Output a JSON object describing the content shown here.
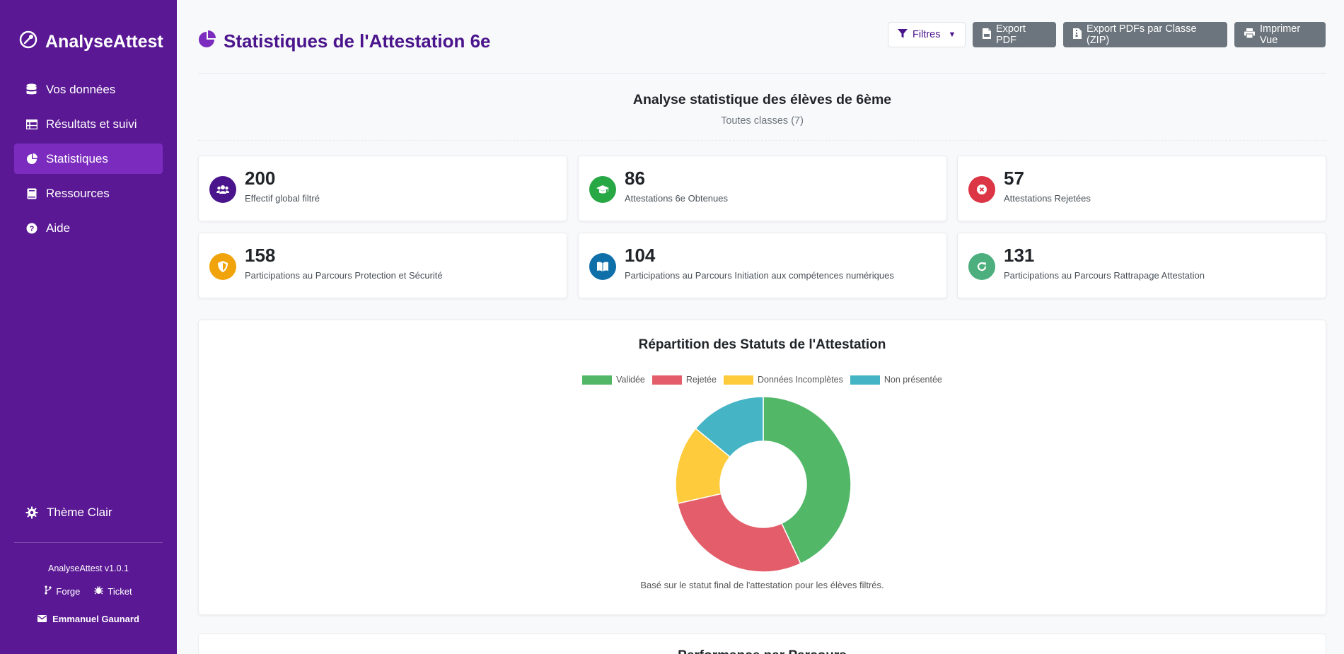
{
  "app": {
    "name": "AnalyseAttest"
  },
  "sidebar": {
    "items": [
      {
        "label": "Vos données",
        "icon": "database-icon"
      },
      {
        "label": "Résultats et suivi",
        "icon": "table-icon"
      },
      {
        "label": "Statistiques",
        "icon": "pie-chart-icon",
        "active": true
      },
      {
        "label": "Ressources",
        "icon": "book-icon"
      },
      {
        "label": "Aide",
        "icon": "question-circle-icon"
      }
    ],
    "theme_label": "Thème Clair",
    "version": "AnalyseAttest v1.0.1",
    "forge_label": "Forge",
    "ticket_label": "Ticket",
    "author": "Emmanuel Gaunard"
  },
  "header": {
    "title": "Statistiques de l'Attestation 6e",
    "filter_label": "Filtres",
    "export_pdf_label": "Export PDF",
    "export_zip_label": "Export PDFs par Classe (ZIP)",
    "print_label": "Imprimer Vue"
  },
  "summary": {
    "heading": "Analyse statistique des élèves de 6ème",
    "subheading": "Toutes classes (7)"
  },
  "stats": [
    {
      "value": "200",
      "label": "Effectif global filtré",
      "color": "#4a148c",
      "icon": "users-icon"
    },
    {
      "value": "86",
      "label": "Attestations 6e Obtenues",
      "color": "#28a745",
      "icon": "graduation-cap-icon"
    },
    {
      "value": "57",
      "label": "Attestations Rejetées",
      "color": "#dc3545",
      "icon": "times-circle-icon"
    },
    {
      "value": "158",
      "label": "Participations au Parcours Protection et Sécurité",
      "color": "#f0a30a",
      "icon": "shield-icon"
    },
    {
      "value": "104",
      "label": "Participations au Parcours Initiation aux compétences numériques",
      "color": "#0f6fa8",
      "icon": "book-open-icon"
    },
    {
      "value": "131",
      "label": "Participations au Parcours Rattrapage Attestation",
      "color": "#4caf7d",
      "icon": "redo-icon"
    }
  ],
  "chart_data": {
    "type": "pie",
    "variant": "doughnut",
    "title": "Répartition des Statuts de l'Attestation",
    "categories": [
      "Validée",
      "Rejetée",
      "Données Incomplètes",
      "Non présentée"
    ],
    "values": [
      86,
      57,
      29,
      28
    ],
    "colors": [
      "#52b868",
      "#e35d6a",
      "#fdcb3b",
      "#45b4c5"
    ],
    "legend_position": "top",
    "note": "Basé sur le statut final de l'attestation pour les élèves filtrés."
  },
  "next_panel": {
    "title": "Performance par Parcours"
  }
}
